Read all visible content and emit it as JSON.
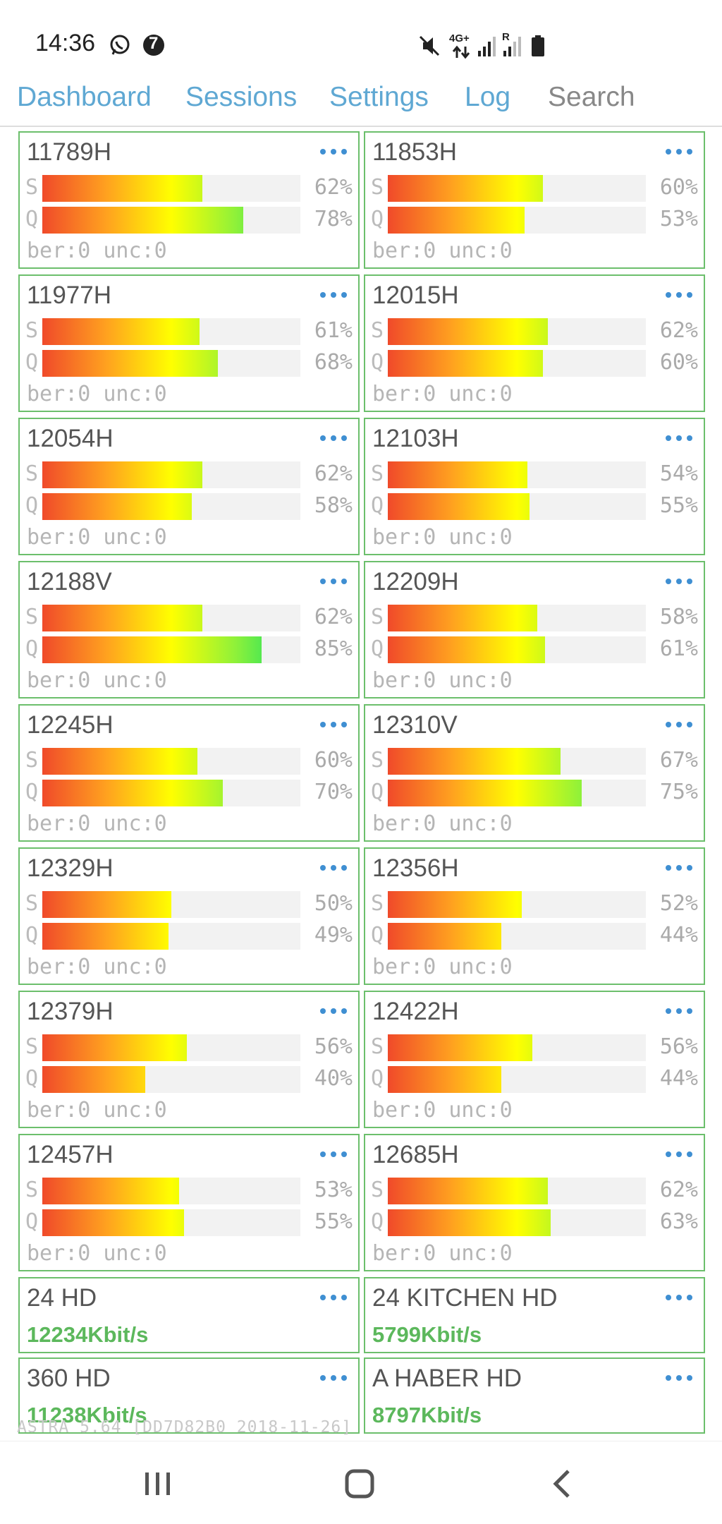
{
  "status_bar": {
    "time": "14:36",
    "left_icons": [
      "whatsapp-icon",
      "notification-count-icon"
    ],
    "notification_count": "7",
    "network": "4G+",
    "roaming": "R",
    "right_icons": [
      "mute-icon",
      "data-arrows-icon",
      "signal-icon",
      "signal-roaming-icon",
      "battery-icon"
    ]
  },
  "nav": {
    "dashboard": "Dashboard",
    "sessions": "Sessions",
    "settings": "Settings",
    "log": "Log",
    "search": "Search"
  },
  "labels": {
    "signal": "S",
    "quality": "Q"
  },
  "transponders": [
    {
      "name": "11789H",
      "s": 62,
      "q": 78,
      "s_text": "62%",
      "q_text": "78%",
      "ber": "ber:0 unc:0"
    },
    {
      "name": "11853H",
      "s": 60,
      "q": 53,
      "s_text": "60%",
      "q_text": "53%",
      "ber": "ber:0 unc:0"
    },
    {
      "name": "11977H",
      "s": 61,
      "q": 68,
      "s_text": "61%",
      "q_text": "68%",
      "ber": "ber:0 unc:0"
    },
    {
      "name": "12015H",
      "s": 62,
      "q": 60,
      "s_text": "62%",
      "q_text": "60%",
      "ber": "ber:0 unc:0"
    },
    {
      "name": "12054H",
      "s": 62,
      "q": 58,
      "s_text": "62%",
      "q_text": "58%",
      "ber": "ber:0 unc:0"
    },
    {
      "name": "12103H",
      "s": 54,
      "q": 55,
      "s_text": "54%",
      "q_text": "55%",
      "ber": "ber:0 unc:0"
    },
    {
      "name": "12188V",
      "s": 62,
      "q": 85,
      "s_text": "62%",
      "q_text": "85%",
      "ber": "ber:0 unc:0"
    },
    {
      "name": "12209H",
      "s": 58,
      "q": 61,
      "s_text": "58%",
      "q_text": "61%",
      "ber": "ber:0 unc:0"
    },
    {
      "name": "12245H",
      "s": 60,
      "q": 70,
      "s_text": "60%",
      "q_text": "70%",
      "ber": "ber:0 unc:0"
    },
    {
      "name": "12310V",
      "s": 67,
      "q": 75,
      "s_text": "67%",
      "q_text": "75%",
      "ber": "ber:0 unc:0"
    },
    {
      "name": "12329H",
      "s": 50,
      "q": 49,
      "s_text": "50%",
      "q_text": "49%",
      "ber": "ber:0 unc:0"
    },
    {
      "name": "12356H",
      "s": 52,
      "q": 44,
      "s_text": "52%",
      "q_text": "44%",
      "ber": "ber:0 unc:0"
    },
    {
      "name": "12379H",
      "s": 56,
      "q": 40,
      "s_text": "56%",
      "q_text": "40%",
      "ber": "ber:0 unc:0"
    },
    {
      "name": "12422H",
      "s": 56,
      "q": 44,
      "s_text": "56%",
      "q_text": "44%",
      "ber": "ber:0 unc:0"
    },
    {
      "name": "12457H",
      "s": 53,
      "q": 55,
      "s_text": "53%",
      "q_text": "55%",
      "ber": "ber:0 unc:0"
    },
    {
      "name": "12685H",
      "s": 62,
      "q": 63,
      "s_text": "62%",
      "q_text": "63%",
      "ber": "ber:0 unc:0"
    }
  ],
  "channels": [
    {
      "name": "24 HD",
      "rate": "12234Kbit/s"
    },
    {
      "name": "24 KITCHEN HD",
      "rate": "5799Kbit/s"
    },
    {
      "name": "360 HD",
      "rate": "11238Kbit/s"
    },
    {
      "name": "A HABER HD",
      "rate": "8797Kbit/s"
    }
  ],
  "footer": {
    "version": "ASTRA 5.64 [DD7D82B0 2018-11-26]"
  },
  "colors": {
    "accent": "#5fa8d3",
    "card_border": "#6cbf6c",
    "rate_green": "#5cb85c",
    "dots": "#3f8fd2",
    "bar_gradient": [
      "#f04a2a",
      "#ffa21f",
      "#ffff00",
      "#8ef13a",
      "#00dc6e"
    ]
  },
  "system_nav": [
    "recents-icon",
    "home-icon",
    "back-icon"
  ]
}
